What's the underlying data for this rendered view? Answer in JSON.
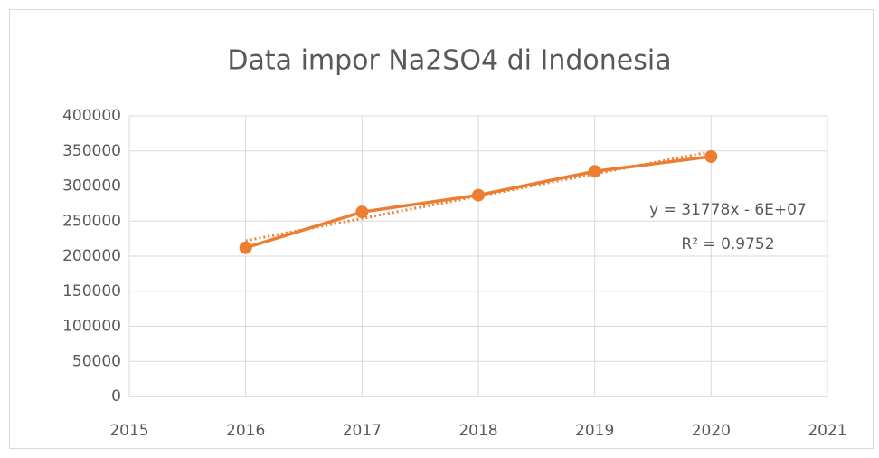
{
  "chart_data": {
    "type": "line",
    "title": "Data impor Na2SO4 di Indonesia",
    "x": [
      2016,
      2017,
      2018,
      2019,
      2020
    ],
    "series": [
      {
        "color": "#ed7d31",
        "values": [
          212000,
          263000,
          287000,
          321000,
          342000
        ]
      }
    ],
    "trendline": {
      "x": [
        2016,
        2020
      ],
      "values": [
        222000,
        349000
      ],
      "color": "#ed7d31",
      "style": "dotted"
    },
    "annotations": [
      "y = 31778x - 6E+07",
      "R² = 0.9752"
    ],
    "xlim": [
      2015,
      2021
    ],
    "xticks": [
      2015,
      2016,
      2017,
      2018,
      2019,
      2020,
      2021
    ],
    "ylim": [
      0,
      400000
    ],
    "yticks": [
      0,
      50000,
      100000,
      150000,
      200000,
      250000,
      300000,
      350000,
      400000
    ],
    "grid": true
  }
}
